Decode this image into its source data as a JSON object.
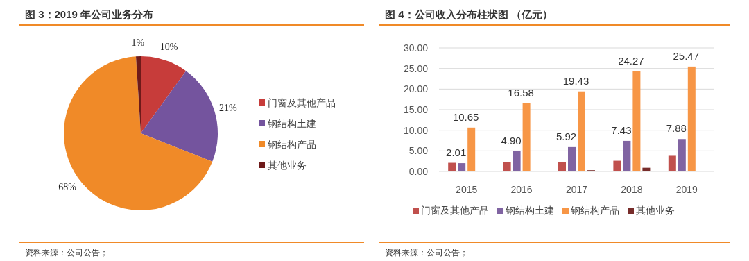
{
  "chart_data": [
    {
      "type": "pie",
      "title": "图 3：2019 年公司业务分布",
      "categories": [
        "门窗及其他产品",
        "钢结构土建",
        "钢结构产品",
        "其他业务"
      ],
      "values": [
        10,
        21,
        68,
        1
      ],
      "colors": [
        "#c73c3a",
        "#74549e",
        "#f08a28",
        "#6e1a1a"
      ],
      "value_labels": [
        "10%",
        "21%",
        "68%",
        "1%"
      ],
      "legend": "right",
      "annotations": [
        "资料来源：公司公告；"
      ]
    },
    {
      "type": "bar",
      "title": "图 4：公司收入分布柱状图 （亿元）",
      "categories": [
        "2015",
        "2016",
        "2017",
        "2018",
        "2019"
      ],
      "series": [
        {
          "name": "门窗及其他产品",
          "color": "#c0504d",
          "values": [
            2.1,
            2.3,
            2.3,
            2.6,
            3.8
          ]
        },
        {
          "name": "钢结构土建",
          "color": "#8064a2",
          "values": [
            2.01,
            4.9,
            5.92,
            7.43,
            7.88
          ],
          "value_labels": [
            "2.01",
            "4.90",
            "5.92",
            "7.43",
            "7.88"
          ]
        },
        {
          "name": "钢结构产品",
          "color": "#f79646",
          "values": [
            10.65,
            16.58,
            19.43,
            24.27,
            25.47
          ],
          "value_labels": [
            "10.65",
            "16.58",
            "19.43",
            "24.27",
            "25.47"
          ]
        },
        {
          "name": "其他业务",
          "color": "#772c2a",
          "values": [
            0.1,
            0.0,
            0.3,
            0.9,
            0.1
          ]
        }
      ],
      "ylim": [
        0,
        30
      ],
      "yticks": [
        {
          "value": 0,
          "label": "0.00"
        },
        {
          "value": 5,
          "label": "5.00"
        },
        {
          "value": 10,
          "label": "10.00"
        },
        {
          "value": 15,
          "label": "15.00"
        },
        {
          "value": 20,
          "label": "20.00"
        },
        {
          "value": 25,
          "label": "25.00"
        },
        {
          "value": 30,
          "label": "30.00"
        }
      ],
      "grid": "y",
      "legend": "bottom",
      "annotations": [
        "资料来源：公司公告；"
      ]
    }
  ]
}
